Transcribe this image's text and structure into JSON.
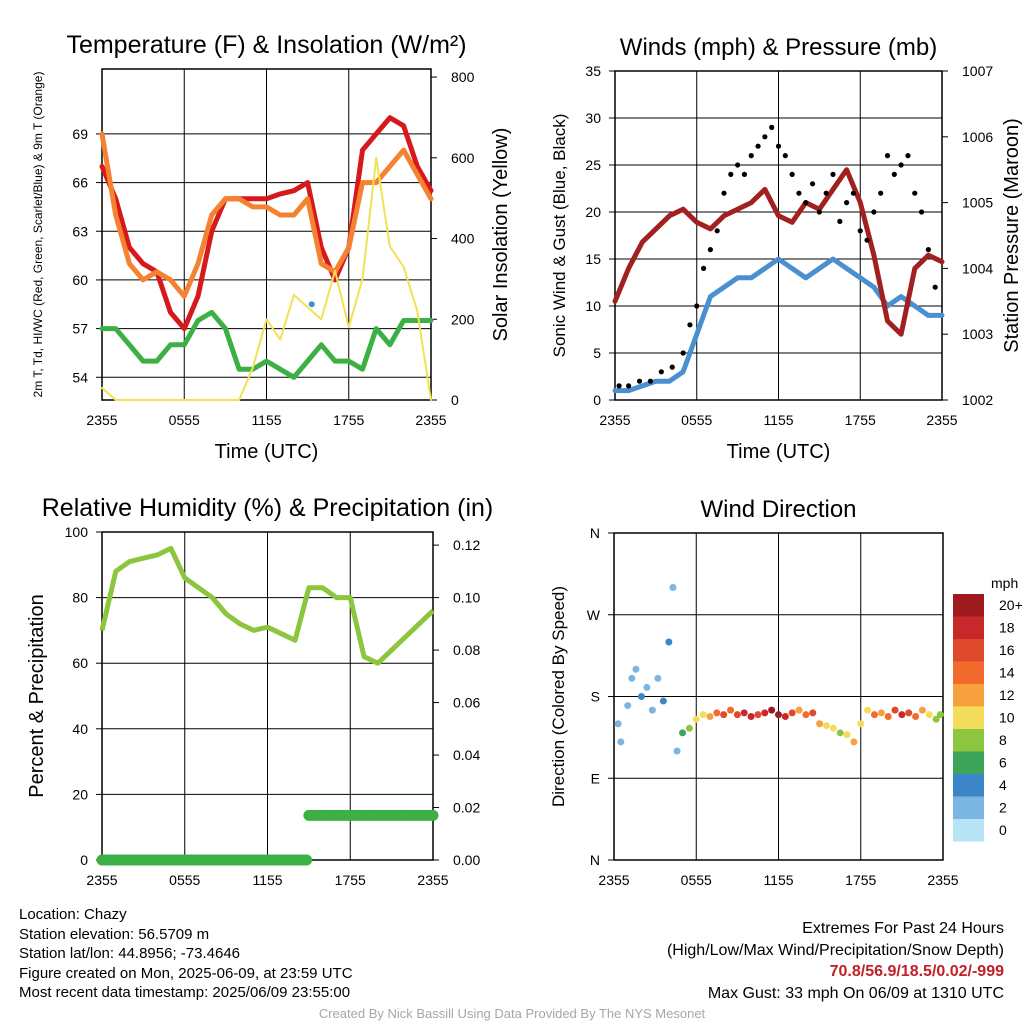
{
  "chart_data": [
    {
      "type": "line",
      "title": "Temperature (F) & Insolation (W/m²)",
      "xlabel": "Time (UTC)",
      "ylabel_left": "2m T, Td, HI/WC (Red, Green, Scarlet/Blue) & 9m T (Orange)",
      "ylabel_right": "Solar Insolation (Yellow)",
      "x_ticks": [
        "2355",
        "0555",
        "1155",
        "1755",
        "2355"
      ],
      "ylim_left": [
        52.6,
        73.0
      ],
      "yticks_left": [
        "54",
        "57",
        "60",
        "63",
        "66",
        "69"
      ],
      "ylim_right": [
        0,
        820
      ],
      "yticks_right": [
        "0",
        "200",
        "400",
        "600",
        "800"
      ],
      "x_hours": [
        0,
        1,
        2,
        3,
        4,
        5,
        6,
        7,
        8,
        9,
        10,
        11,
        12,
        13,
        14,
        15,
        16,
        17,
        18,
        19,
        20,
        21,
        22,
        23,
        24
      ],
      "series": [
        {
          "color": "#d7191c",
          "values": [
            67,
            65,
            62,
            61,
            60.5,
            58,
            57,
            59,
            63,
            65,
            65,
            65,
            65,
            65.3,
            65.5,
            66,
            62,
            60,
            62,
            68,
            69,
            70,
            69.5,
            67,
            65.5
          ],
          "axis": "left"
        },
        {
          "color": "#f58231",
          "values": [
            69,
            64,
            61,
            60,
            60.5,
            60,
            59,
            61,
            64,
            65,
            65,
            64.5,
            64.5,
            64,
            64,
            65,
            61,
            60.5,
            62,
            66,
            66,
            67,
            68,
            66.5,
            65
          ],
          "axis": "left"
        },
        {
          "color": "#3cb044",
          "values": [
            57,
            57,
            56,
            55,
            55,
            56,
            56,
            57.5,
            58,
            57,
            54.5,
            54.5,
            55,
            54.5,
            54,
            55,
            56,
            55,
            55,
            54.5,
            57,
            56,
            57.5,
            57.5,
            57.5
          ],
          "axis": "left"
        },
        {
          "color": "#f2e253",
          "values": [
            30,
            0,
            0,
            0,
            0,
            0,
            0,
            0,
            0,
            0,
            0,
            80,
            200,
            150,
            260,
            230,
            200,
            320,
            180,
            300,
            600,
            380,
            330,
            220,
            0
          ],
          "axis": "right"
        }
      ],
      "marker": {
        "x_hour": 15.3,
        "y": 58.5,
        "color": "#3a8fd9"
      }
    },
    {
      "type": "line",
      "title": "Winds (mph) & Pressure (mb)",
      "xlabel": "Time (UTC)",
      "ylabel_left": "Sonic Wind & Gust (Blue, Black)",
      "ylabel_right": "Station Pressure (Maroon)",
      "x_ticks": [
        "2355",
        "0555",
        "1155",
        "1755",
        "2355"
      ],
      "ylim_left": [
        0,
        35
      ],
      "yticks_left": [
        "0",
        "5",
        "10",
        "15",
        "20",
        "25",
        "30",
        "35"
      ],
      "ylim_right": [
        1002,
        1007
      ],
      "yticks_right": [
        "1002",
        "1003",
        "1004",
        "1005",
        "1006",
        "1007"
      ],
      "x_hours": [
        0,
        1,
        2,
        3,
        4,
        5,
        6,
        7,
        8,
        9,
        10,
        11,
        12,
        13,
        14,
        15,
        16,
        17,
        18,
        19,
        20,
        21,
        22,
        23,
        24
      ],
      "series": [
        {
          "name": "Sonic Wind",
          "color": "#4a90d0",
          "values": [
            1,
            1,
            1.5,
            2,
            2,
            3,
            7,
            11,
            12,
            13,
            13,
            14,
            15,
            14,
            13,
            14,
            15,
            14,
            13,
            12,
            10,
            11,
            10,
            9,
            9
          ],
          "axis": "left"
        },
        {
          "name": "Station Pressure",
          "color": "#a32020",
          "values": [
            1003.5,
            1004,
            1004.4,
            1004.6,
            1004.8,
            1004.9,
            1004.7,
            1004.6,
            1004.8,
            1004.9,
            1005,
            1005.2,
            1004.8,
            1004.7,
            1005,
            1004.9,
            1005.2,
            1005.5,
            1005,
            1004.2,
            1003.2,
            1003,
            1004,
            1004.2,
            1004.1
          ],
          "axis": "right"
        }
      ],
      "gusts": {
        "color": "#000000",
        "x_hours": [
          0.3,
          1,
          1.8,
          2.6,
          3.4,
          4.2,
          5,
          5.5,
          6,
          6.5,
          7,
          7.5,
          8,
          8.5,
          9,
          9.5,
          10,
          10.5,
          11,
          11.5,
          12,
          12.5,
          13,
          13.5,
          14,
          14.5,
          15,
          15.5,
          16,
          16.5,
          17,
          17.5,
          18,
          18.5,
          19,
          19.5,
          20,
          20.5,
          21,
          21.5,
          22,
          22.5,
          23,
          23.5
        ],
        "values": [
          1.5,
          1.5,
          2,
          2,
          3,
          3.5,
          5,
          8,
          10,
          14,
          16,
          18,
          22,
          24,
          25,
          24,
          26,
          27,
          28,
          29,
          27,
          26,
          24,
          22,
          21,
          23,
          20,
          22,
          24,
          19,
          21,
          22,
          18,
          17,
          20,
          22,
          26,
          24,
          25,
          26,
          22,
          20,
          16,
          12
        ]
      }
    },
    {
      "type": "line",
      "title": "Relative Humidity (%) & Precipitation (in)",
      "ylabel_left": "Percent & Precipitation",
      "x_ticks": [
        "2355",
        "0555",
        "1155",
        "1755",
        "2355"
      ],
      "ylim_left": [
        0,
        100
      ],
      "yticks_left": [
        "0",
        "20",
        "40",
        "60",
        "80",
        "100"
      ],
      "ylim_right": [
        0,
        0.125
      ],
      "yticks_right": [
        "0.00",
        "0.02",
        "0.04",
        "0.06",
        "0.08",
        "0.10",
        "0.12"
      ],
      "x_hours": [
        0,
        1,
        2,
        3,
        4,
        5,
        6,
        7,
        8,
        9,
        10,
        11,
        12,
        13,
        14,
        15,
        16,
        17,
        18,
        19,
        20,
        21,
        22,
        23,
        24
      ],
      "series": [
        {
          "name": "Relative Humidity",
          "color": "#8cc63f",
          "values": [
            70,
            88,
            91,
            92,
            93,
            95,
            86,
            83,
            80,
            75,
            72,
            70,
            71,
            69,
            67,
            83,
            83,
            80,
            80,
            62,
            60,
            64,
            68,
            72,
            76
          ],
          "axis": "left"
        },
        {
          "name": "Precipitation",
          "color": "#3cb044",
          "values": [
            0,
            0,
            0,
            0,
            0,
            0,
            0,
            0,
            0,
            0,
            0,
            0,
            0,
            0,
            0,
            0.017,
            0.017,
            0.017,
            0.017,
            0.017,
            0.017,
            0.017,
            0.017,
            0.017,
            0.017
          ],
          "axis": "right"
        }
      ]
    },
    {
      "type": "scatter",
      "title": "Wind Direction",
      "ylabel_left": "Direction (Colored By Speed)",
      "x_ticks": [
        "2355",
        "0555",
        "1155",
        "1755",
        "2355"
      ],
      "ylim_left": [
        0,
        360
      ],
      "yticks_left": [
        "N",
        "E",
        "S",
        "W",
        "N"
      ],
      "x_hours": [
        0.3,
        0.5,
        1,
        1.3,
        1.6,
        2,
        2.4,
        2.8,
        3.2,
        3.6,
        4,
        4.3,
        4.6,
        5,
        5.5,
        6,
        6.5,
        7,
        7.5,
        8,
        8.5,
        9,
        9.5,
        10,
        10.5,
        11,
        11.5,
        12,
        12.5,
        13,
        13.5,
        14,
        14.5,
        15,
        15.5,
        16,
        16.5,
        17,
        17.5,
        18,
        18.5,
        19,
        19.5,
        20,
        20.5,
        21,
        21.5,
        22,
        22.5,
        23,
        23.5,
        23.8
      ],
      "values": [
        150,
        130,
        170,
        200,
        210,
        180,
        190,
        165,
        200,
        175,
        240,
        300,
        120,
        140,
        145,
        155,
        160,
        158,
        162,
        160,
        165,
        160,
        162,
        158,
        160,
        162,
        165,
        160,
        158,
        162,
        165,
        160,
        162,
        150,
        148,
        145,
        140,
        138,
        130,
        150,
        165,
        160,
        162,
        158,
        165,
        160,
        162,
        158,
        165,
        160,
        155,
        160
      ],
      "speeds": [
        1,
        2,
        1,
        2,
        2,
        3,
        1,
        2,
        2,
        4,
        3,
        1,
        2,
        5,
        8,
        9,
        10,
        12,
        13,
        15,
        14,
        16,
        18,
        17,
        16,
        18,
        20,
        19,
        18,
        15,
        12,
        14,
        16,
        12,
        10,
        9,
        8,
        10,
        11,
        9,
        10,
        13,
        12,
        14,
        16,
        18,
        15,
        13,
        12,
        10,
        8,
        7
      ],
      "legend": {
        "title": "mph",
        "labels": [
          "20+",
          "18",
          "16",
          "14",
          "12",
          "10",
          "8",
          "6",
          "4",
          "2",
          "0"
        ],
        "colors": [
          "#9e1a1f",
          "#c9282b",
          "#e04a2c",
          "#f26b2c",
          "#f7a13e",
          "#f4dd5b",
          "#8cc63f",
          "#3da45b",
          "#3a86c6",
          "#7ab6e1",
          "#b7e3f6"
        ]
      }
    }
  ],
  "info": {
    "location": "Location: Chazy",
    "elevation": "Station elevation: 56.5709 m",
    "latlon": "Station lat/lon: 44.8956; -73.4646",
    "created": "Figure created on Mon, 2025-06-09, at 23:59 UTC",
    "recent": "Most recent data timestamp: 2025/06/09 23:55:00",
    "extremes_title": "Extremes For Past 24 Hours",
    "extremes_fields": "(High/Low/Max Wind/Precipitation/Snow Depth)",
    "extremes_values": "70.8/56.9/18.5/0.02/-999",
    "max_gust": "Max Gust: 33 mph On 06/09 at 1310 UTC",
    "credit": "Created By Nick Bassill Using Data Provided By The NYS Mesonet"
  }
}
